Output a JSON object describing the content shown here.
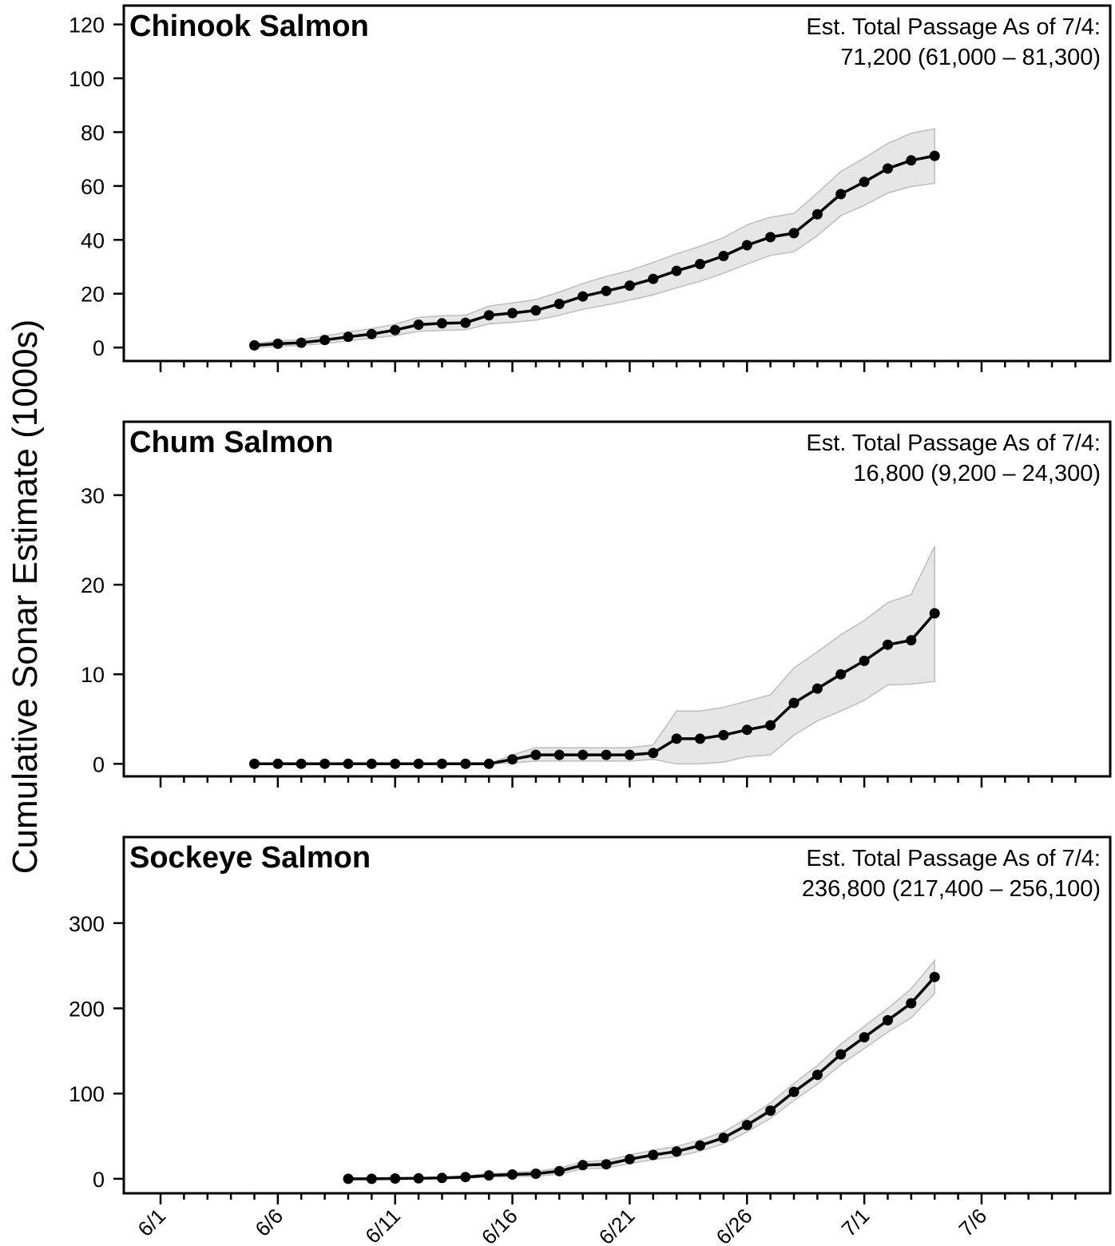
{
  "ylabel": "Cumulative Sonar Estimate (1000s)",
  "x_tick_labels": [
    "6/1",
    "6/6",
    "6/11",
    "6/16",
    "6/21",
    "6/26",
    "7/1",
    "7/6"
  ],
  "colors": {
    "line": "#000000",
    "band_fill": "#e6e6e6",
    "band_edge": "#bdbdbd"
  },
  "chart_data": [
    {
      "type": "line",
      "title": "Chinook Salmon",
      "annotation_line1": "Est. Total Passage As of 7/4:",
      "annotation_line2": "71,200 (61,000 – 81,300)",
      "ylim": [
        -5,
        127
      ],
      "yticks": [
        0,
        20,
        40,
        60,
        80,
        100,
        120
      ],
      "x": [
        "6/5",
        "6/6",
        "6/7",
        "6/8",
        "6/9",
        "6/10",
        "6/11",
        "6/12",
        "6/13",
        "6/14",
        "6/15",
        "6/16",
        "6/17",
        "6/18",
        "6/19",
        "6/20",
        "6/21",
        "6/22",
        "6/23",
        "6/24",
        "6/25",
        "6/26",
        "6/27",
        "6/28",
        "6/29",
        "6/30",
        "7/1",
        "7/2",
        "7/3",
        "7/4"
      ],
      "values": [
        0.8,
        1.4,
        1.8,
        2.8,
        4,
        5,
        6.5,
        8.5,
        9,
        9.2,
        12,
        12.8,
        13.8,
        16.2,
        19,
        21,
        23,
        25.5,
        28.5,
        31,
        34,
        38,
        41,
        42.5,
        49.5,
        57,
        61.5,
        66.5,
        69.5,
        71.2
      ],
      "lower": [
        0,
        0.4,
        0.8,
        1.5,
        2.5,
        3.5,
        4.5,
        6,
        6.4,
        6.6,
        8.8,
        9.4,
        10.2,
        12,
        14.2,
        15.8,
        17.6,
        19.6,
        22.2,
        24.6,
        27.6,
        31,
        34.2,
        35.6,
        41.6,
        49,
        52.8,
        57.4,
        59.8,
        61
      ],
      "upper": [
        1.6,
        2.4,
        3,
        4.3,
        5.8,
        7,
        8.7,
        11.2,
        11.8,
        12,
        15.4,
        16.6,
        17.8,
        20.6,
        23.8,
        26.4,
        28.6,
        31.6,
        34.8,
        37.6,
        40.8,
        45.6,
        48.4,
        49.8,
        57.4,
        65.4,
        70.4,
        75.8,
        79.6,
        81.3
      ]
    },
    {
      "type": "line",
      "title": "Chum Salmon",
      "annotation_line1": "Est. Total Passage As of 7/4:",
      "annotation_line2": "16,800 (9,200 – 24,300)",
      "ylim": [
        -1.4,
        38.2
      ],
      "yticks": [
        0,
        10,
        20,
        30
      ],
      "x": [
        "6/5",
        "6/6",
        "6/7",
        "6/8",
        "6/9",
        "6/10",
        "6/11",
        "6/12",
        "6/13",
        "6/14",
        "6/15",
        "6/16",
        "6/17",
        "6/18",
        "6/19",
        "6/20",
        "6/21",
        "6/22",
        "6/23",
        "6/24",
        "6/25",
        "6/26",
        "6/27",
        "6/28",
        "6/29",
        "6/30",
        "7/1",
        "7/2",
        "7/3",
        "7/4"
      ],
      "values": [
        0,
        0,
        0,
        0,
        0,
        0,
        0,
        0,
        0,
        0,
        0,
        0.5,
        1,
        1,
        1,
        1,
        1,
        1.2,
        2.8,
        2.8,
        3.2,
        3.8,
        4.3,
        6.8,
        8.4,
        10,
        11.5,
        13.3,
        13.8,
        16.8
      ],
      "lower": [
        0,
        0,
        0,
        0,
        0,
        0,
        0,
        0,
        0,
        0,
        0,
        0.1,
        0.3,
        0.3,
        0.3,
        0.3,
        0.3,
        0.5,
        0,
        0,
        0.2,
        0.8,
        1,
        3.2,
        4.8,
        5.9,
        7.1,
        8.8,
        8.9,
        9.2
      ],
      "upper": [
        0,
        0,
        0,
        0,
        0,
        0,
        0,
        0,
        0,
        0,
        0,
        1,
        1.8,
        1.8,
        1.8,
        1.8,
        1.8,
        2.1,
        5.9,
        5.9,
        6.3,
        7,
        7.7,
        10.7,
        12.5,
        14.4,
        16,
        18,
        18.9,
        24.3
      ]
    },
    {
      "type": "line",
      "title": "Sockeye Salmon",
      "annotation_line1": "Est. Total Passage As of 7/4:",
      "annotation_line2": "236,800 (217,400 – 256,100)",
      "ylim": [
        -17,
        401
      ],
      "yticks": [
        0,
        100,
        200,
        300
      ],
      "x": [
        "6/9",
        "6/10",
        "6/11",
        "6/12",
        "6/13",
        "6/14",
        "6/15",
        "6/16",
        "6/17",
        "6/18",
        "6/19",
        "6/20",
        "6/21",
        "6/22",
        "6/23",
        "6/24",
        "6/25",
        "6/26",
        "6/27",
        "6/28",
        "6/29",
        "6/30",
        "7/1",
        "7/2",
        "7/3",
        "7/4"
      ],
      "values": [
        0,
        0,
        0.3,
        0.5,
        1,
        2,
        4,
        5,
        6,
        9,
        16,
        17,
        23,
        28,
        32,
        39,
        48,
        63,
        80,
        102,
        122,
        146,
        166,
        186,
        206,
        236.8
      ],
      "lower": [
        0,
        0,
        0,
        0,
        0,
        0.5,
        2,
        2.5,
        3,
        5.5,
        12,
        12.5,
        18,
        22.5,
        26,
        32.5,
        41,
        55,
        71,
        92,
        111,
        134,
        153,
        172,
        189,
        217.4
      ],
      "upper": [
        0.5,
        0.5,
        0.8,
        1.2,
        2,
        3.5,
        6,
        7.5,
        9,
        12.5,
        20,
        21.5,
        28,
        33.5,
        38,
        45.5,
        55,
        71,
        89,
        112,
        133,
        158,
        179,
        200,
        223,
        256.1
      ]
    }
  ]
}
